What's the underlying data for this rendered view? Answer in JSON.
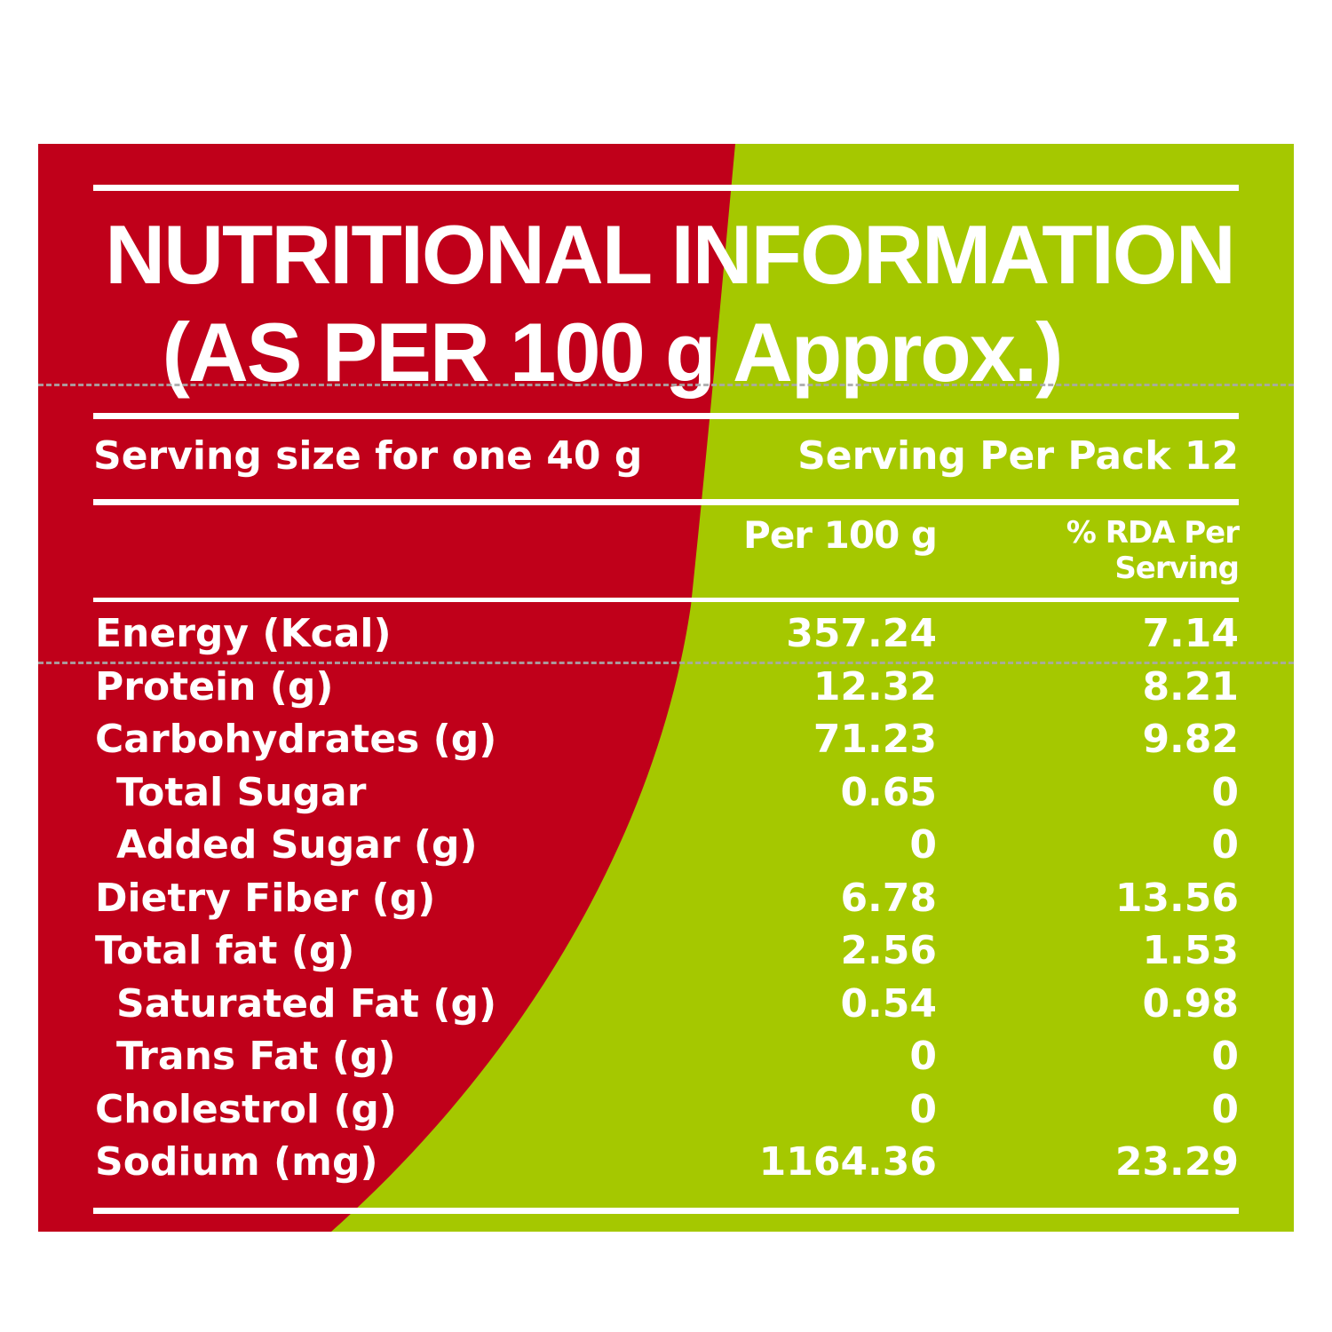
{
  "colors": {
    "red": "#c0001a",
    "green": "#a5c800",
    "text": "#ffffff",
    "dashed_line": "#a9a9a9"
  },
  "title": {
    "line1": "NUTRITIONAL INFORMATION",
    "line2": "(AS PER 100 g Approx.)"
  },
  "serving": {
    "size": "Serving size for one 40 g",
    "per_pack": "Serving Per Pack 12"
  },
  "columns": {
    "per_100g": "Per 100 g",
    "rda_line1": "% RDA Per",
    "rda_line2": "Serving"
  },
  "nutrients": [
    {
      "name": "Energy (Kcal)",
      "per_100g": "357.24",
      "rda": "7.14"
    },
    {
      "name": "Protein (g)",
      "per_100g": "12.32",
      "rda": "8.21"
    },
    {
      "name": "Carbohydrates (g)",
      "per_100g": "71.23",
      "rda": "9.82"
    },
    {
      "name": "Total Sugar",
      "per_100g": "0.65",
      "rda": "0"
    },
    {
      "name": "Added Sugar (g)",
      "per_100g": "0",
      "rda": "0"
    },
    {
      "name": "Dietry Fiber (g)",
      "per_100g": "6.78",
      "rda": "13.56"
    },
    {
      "name": "Total fat (g)",
      "per_100g": "2.56",
      "rda": "1.53"
    },
    {
      "name": "Saturated Fat (g)",
      "per_100g": "0.54",
      "rda": "0.98"
    },
    {
      "name": "Trans Fat (g)",
      "per_100g": "0",
      "rda": "0"
    },
    {
      "name": "Cholestrol (g)",
      "per_100g": "0",
      "rda": "0"
    },
    {
      "name": "Sodium (mg)",
      "per_100g": "1164.36",
      "rda": "23.29"
    }
  ]
}
